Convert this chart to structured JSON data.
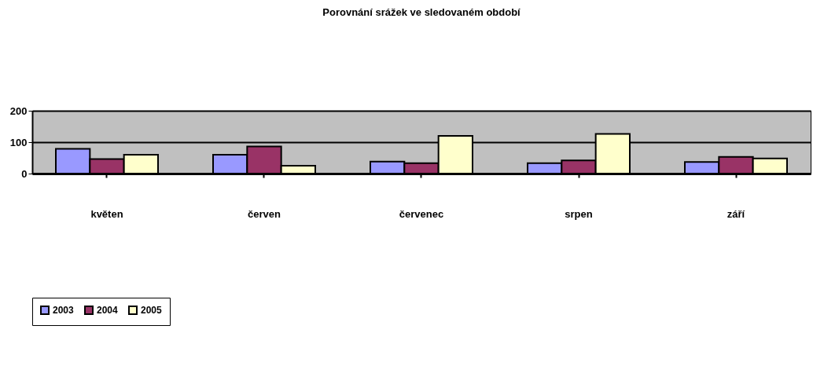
{
  "chart_data": {
    "type": "bar",
    "title": "Porovnání srážek ve sledovaném období",
    "categories": [
      "květen",
      "červen",
      "červenec",
      "srpen",
      "září"
    ],
    "series": [
      {
        "name": "2003",
        "color": "#9999ff",
        "values": [
          79,
          60,
          38,
          33,
          37
        ]
      },
      {
        "name": "2004",
        "color": "#993366",
        "values": [
          46,
          86,
          33,
          42,
          53
        ]
      },
      {
        "name": "2005",
        "color": "#ffffcc",
        "values": [
          60,
          25,
          120,
          126,
          48
        ]
      }
    ],
    "ylim": [
      0,
      200
    ],
    "yticks": [
      0,
      100,
      200
    ],
    "grid": "y",
    "legend": "bottom"
  }
}
